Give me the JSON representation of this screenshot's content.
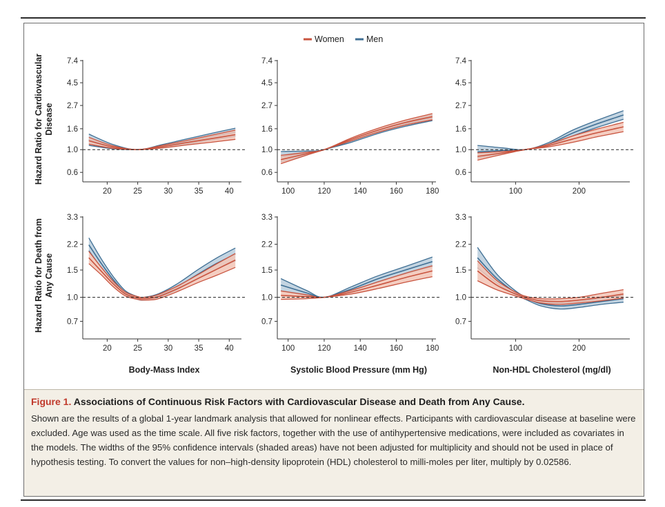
{
  "colors": {
    "women_line": "#c9543f",
    "women_fill": "#f2c4b6",
    "men_line": "#3f6f94",
    "men_fill": "#b9cddc",
    "caption_bg": "#f3efe6",
    "caption_label": "#c0392b"
  },
  "legend": {
    "women": "Women",
    "men": "Men"
  },
  "caption": {
    "label": "Figure 1.",
    "title": "Associations of Continuous Risk Factors with Cardiovascular Disease and Death from Any Cause.",
    "body": "Shown are the results of a global 1-year landmark analysis that allowed for nonlinear effects. Participants with cardiovascular disease at baseline were excluded. Age was used as the time scale. All five risk factors, together with the use of antihypertensive medications, were included as covariates in the models. The widths of the 95% confidence intervals (shaded areas) have not been adjusted for multiplicity and should not be used in place of hypothesis testing. To convert the values for non–high-density lipoprotein (HDL) cholesterol to milli-moles per liter, multiply by 0.02586."
  },
  "row_labels": [
    {
      "line1": "Hazard Ratio for Cardiovascular",
      "line2": "Disease"
    },
    {
      "line1": "Hazard Ratio for Death from",
      "line2": "Any Cause"
    }
  ],
  "column_labels": [
    "Body-Mass Index",
    "Systolic Blood Pressure (mm Hg)",
    "Non-HDL Cholesterol (mg/dl)"
  ],
  "chart_data": [
    {
      "type": "line",
      "row": 0,
      "col": 0,
      "xlabel": "Body-Mass Index",
      "ylabel": "Hazard Ratio for Cardiovascular Disease",
      "xlim": [
        16,
        42
      ],
      "xticks": [
        20,
        25,
        30,
        35,
        40
      ],
      "ylim": [
        0.5,
        7.4
      ],
      "yscale": "log",
      "yticks": [
        7.4,
        4.5,
        2.7,
        1.6,
        1.0,
        0.6
      ],
      "yticklabels": [
        "7.4",
        "4.5",
        "2.7",
        "1.6",
        "1.0",
        "0.6"
      ],
      "reference_line": 1.0,
      "series": [
        {
          "name": "Women",
          "x": [
            17,
            21,
            25,
            29,
            33,
            37,
            41
          ],
          "y": [
            1.22,
            1.06,
            1.0,
            1.07,
            1.17,
            1.28,
            1.4
          ],
          "lower": [
            1.13,
            1.03,
            1.0,
            1.04,
            1.11,
            1.18,
            1.26
          ],
          "upper": [
            1.32,
            1.09,
            1.0,
            1.1,
            1.23,
            1.38,
            1.55
          ]
        },
        {
          "name": "Men",
          "x": [
            17,
            21,
            25,
            29,
            33,
            37,
            41
          ],
          "y": [
            1.25,
            1.07,
            1.0,
            1.08,
            1.2,
            1.34,
            1.48
          ],
          "lower": [
            1.1,
            1.02,
            1.0,
            1.04,
            1.13,
            1.24,
            1.35
          ],
          "upper": [
            1.42,
            1.12,
            1.0,
            1.12,
            1.27,
            1.44,
            1.62
          ]
        }
      ]
    },
    {
      "type": "line",
      "row": 0,
      "col": 1,
      "xlabel": "Systolic Blood Pressure (mm Hg)",
      "ylabel": "Hazard Ratio for Cardiovascular Disease",
      "xlim": [
        94,
        182
      ],
      "xticks": [
        100,
        120,
        140,
        160,
        180
      ],
      "ylim": [
        0.5,
        7.4
      ],
      "yscale": "log",
      "yticks": [
        7.4,
        4.5,
        2.7,
        1.6,
        1.0,
        0.6
      ],
      "yticklabels": [
        "7.4",
        "4.5",
        "2.7",
        "1.6",
        "1.0",
        "0.6"
      ],
      "reference_line": 1.0,
      "series": [
        {
          "name": "Women",
          "x": [
            96,
            110,
            120,
            135,
            150,
            165,
            180
          ],
          "y": [
            0.8,
            0.91,
            1.0,
            1.26,
            1.55,
            1.84,
            2.1
          ],
          "lower": [
            0.73,
            0.88,
            1.0,
            1.22,
            1.48,
            1.74,
            1.96
          ],
          "upper": [
            0.88,
            0.94,
            1.0,
            1.3,
            1.62,
            1.94,
            2.25
          ]
        },
        {
          "name": "Men",
          "x": [
            96,
            110,
            120,
            135,
            150,
            165,
            180
          ],
          "y": [
            0.85,
            0.93,
            1.0,
            1.22,
            1.5,
            1.78,
            2.05
          ],
          "lower": [
            0.76,
            0.89,
            1.0,
            1.18,
            1.44,
            1.69,
            1.92
          ],
          "upper": [
            0.96,
            0.97,
            1.0,
            1.26,
            1.56,
            1.87,
            2.18
          ]
        }
      ]
    },
    {
      "type": "line",
      "row": 0,
      "col": 2,
      "xlabel": "Non-HDL Cholesterol (mg/dl)",
      "ylabel": "Hazard Ratio for Cardiovascular Disease",
      "xlim": [
        30,
        280
      ],
      "xticks": [
        100,
        200
      ],
      "ylim": [
        0.5,
        7.4
      ],
      "yscale": "log",
      "yticks": [
        7.4,
        4.5,
        2.7,
        1.6,
        1.0,
        0.6
      ],
      "yticklabels": [
        "7.4",
        "4.5",
        "2.7",
        "1.6",
        "1.0",
        "0.6"
      ],
      "reference_line": 1.0,
      "series": [
        {
          "name": "Women",
          "x": [
            40,
            80,
            115,
            150,
            190,
            230,
            270
          ],
          "y": [
            0.86,
            0.93,
            1.0,
            1.09,
            1.27,
            1.47,
            1.67
          ],
          "lower": [
            0.79,
            0.9,
            1.0,
            1.06,
            1.18,
            1.34,
            1.5
          ],
          "upper": [
            0.93,
            0.96,
            1.0,
            1.12,
            1.36,
            1.6,
            1.85
          ]
        },
        {
          "name": "Men",
          "x": [
            40,
            80,
            115,
            150,
            190,
            230,
            270
          ],
          "y": [
            0.95,
            0.98,
            1.0,
            1.12,
            1.45,
            1.8,
            2.18
          ],
          "lower": [
            0.83,
            0.92,
            1.0,
            1.08,
            1.36,
            1.66,
            1.98
          ],
          "upper": [
            1.1,
            1.04,
            1.0,
            1.16,
            1.55,
            1.95,
            2.4
          ]
        }
      ]
    },
    {
      "type": "line",
      "row": 1,
      "col": 0,
      "xlabel": "Body-Mass Index",
      "ylabel": "Hazard Ratio for Death from Any Cause",
      "xlim": [
        16,
        42
      ],
      "xticks": [
        20,
        25,
        30,
        35,
        40
      ],
      "ylim": [
        0.55,
        3.3
      ],
      "yscale": "log",
      "yticks": [
        3.3,
        2.2,
        1.5,
        1.0,
        0.7
      ],
      "yticklabels": [
        "3.3",
        "2.2",
        "1.5",
        "1.0",
        "0.7"
      ],
      "reference_line": 1.0,
      "series": [
        {
          "name": "Women",
          "x": [
            17,
            19,
            21,
            23,
            25,
            26,
            28,
            30,
            32,
            35,
            38,
            41
          ],
          "y": [
            1.8,
            1.48,
            1.22,
            1.05,
            0.99,
            0.98,
            1.0,
            1.07,
            1.16,
            1.33,
            1.52,
            1.74
          ],
          "lower": [
            1.65,
            1.4,
            1.17,
            1.02,
            0.97,
            0.96,
            0.97,
            1.03,
            1.11,
            1.25,
            1.39,
            1.56
          ],
          "upper": [
            1.98,
            1.57,
            1.27,
            1.08,
            1.01,
            1.0,
            1.03,
            1.11,
            1.21,
            1.41,
            1.65,
            1.92
          ]
        },
        {
          "name": "Men",
          "x": [
            17,
            19,
            21,
            23,
            25,
            26,
            28,
            30,
            32,
            35,
            38,
            41
          ],
          "y": [
            2.18,
            1.66,
            1.3,
            1.07,
            0.99,
            0.98,
            1.01,
            1.09,
            1.2,
            1.42,
            1.66,
            1.9
          ],
          "lower": [
            2.0,
            1.56,
            1.25,
            1.04,
            0.97,
            0.96,
            0.98,
            1.05,
            1.15,
            1.33,
            1.52,
            1.72
          ],
          "upper": [
            2.42,
            1.78,
            1.36,
            1.1,
            1.01,
            1.0,
            1.04,
            1.13,
            1.26,
            1.52,
            1.8,
            2.08
          ]
        }
      ]
    },
    {
      "type": "line",
      "row": 1,
      "col": 1,
      "xlabel": "Systolic Blood Pressure (mm Hg)",
      "ylabel": "Hazard Ratio for Death from Any Cause",
      "xlim": [
        94,
        182
      ],
      "xticks": [
        100,
        120,
        140,
        160,
        180
      ],
      "ylim": [
        0.55,
        3.3
      ],
      "yscale": "log",
      "yticks": [
        3.3,
        2.2,
        1.5,
        1.0,
        0.7
      ],
      "yticklabels": [
        "3.3",
        "2.2",
        "1.5",
        "1.0",
        "0.7"
      ],
      "reference_line": 1.0,
      "series": [
        {
          "name": "Women",
          "x": [
            96,
            110,
            120,
            135,
            150,
            165,
            180
          ],
          "y": [
            1.03,
            1.01,
            1.0,
            1.08,
            1.2,
            1.34,
            1.48
          ],
          "lower": [
            0.97,
            0.98,
            1.0,
            1.05,
            1.14,
            1.25,
            1.36
          ],
          "upper": [
            1.1,
            1.04,
            1.0,
            1.11,
            1.26,
            1.43,
            1.6
          ]
        },
        {
          "name": "Men",
          "x": [
            96,
            110,
            120,
            135,
            150,
            165,
            180
          ],
          "y": [
            1.2,
            1.07,
            1.0,
            1.13,
            1.32,
            1.5,
            1.7
          ],
          "lower": [
            1.1,
            1.03,
            1.0,
            1.1,
            1.26,
            1.42,
            1.58
          ],
          "upper": [
            1.32,
            1.11,
            1.0,
            1.17,
            1.38,
            1.58,
            1.82
          ]
        }
      ]
    },
    {
      "type": "line",
      "row": 1,
      "col": 2,
      "xlabel": "Non-HDL Cholesterol (mg/dl)",
      "ylabel": "Hazard Ratio for Death from Any Cause",
      "xlim": [
        30,
        280
      ],
      "xticks": [
        100,
        200
      ],
      "ylim": [
        0.55,
        3.3
      ],
      "yscale": "log",
      "yticks": [
        3.3,
        2.2,
        1.5,
        1.0,
        0.7
      ],
      "yticklabels": [
        "3.3",
        "2.2",
        "1.5",
        "1.0",
        "0.7"
      ],
      "reference_line": 1.0,
      "series": [
        {
          "name": "Women",
          "x": [
            40,
            70,
            100,
            118,
            140,
            170,
            200,
            235,
            270
          ],
          "y": [
            1.48,
            1.2,
            1.05,
            0.99,
            0.95,
            0.94,
            0.96,
            1.0,
            1.05
          ],
          "lower": [
            1.28,
            1.12,
            1.02,
            0.97,
            0.92,
            0.9,
            0.92,
            0.95,
            0.99
          ],
          "upper": [
            1.72,
            1.29,
            1.08,
            1.01,
            0.98,
            0.98,
            1.0,
            1.06,
            1.12
          ]
        },
        {
          "name": "Men",
          "x": [
            40,
            70,
            100,
            118,
            140,
            170,
            200,
            235,
            270
          ],
          "y": [
            1.8,
            1.33,
            1.07,
            0.98,
            0.91,
            0.88,
            0.9,
            0.94,
            0.98
          ],
          "lower": [
            1.55,
            1.24,
            1.04,
            0.96,
            0.88,
            0.84,
            0.86,
            0.9,
            0.93
          ],
          "upper": [
            2.1,
            1.42,
            1.1,
            1.0,
            0.94,
            0.92,
            0.94,
            0.99,
            1.03
          ]
        }
      ]
    }
  ]
}
